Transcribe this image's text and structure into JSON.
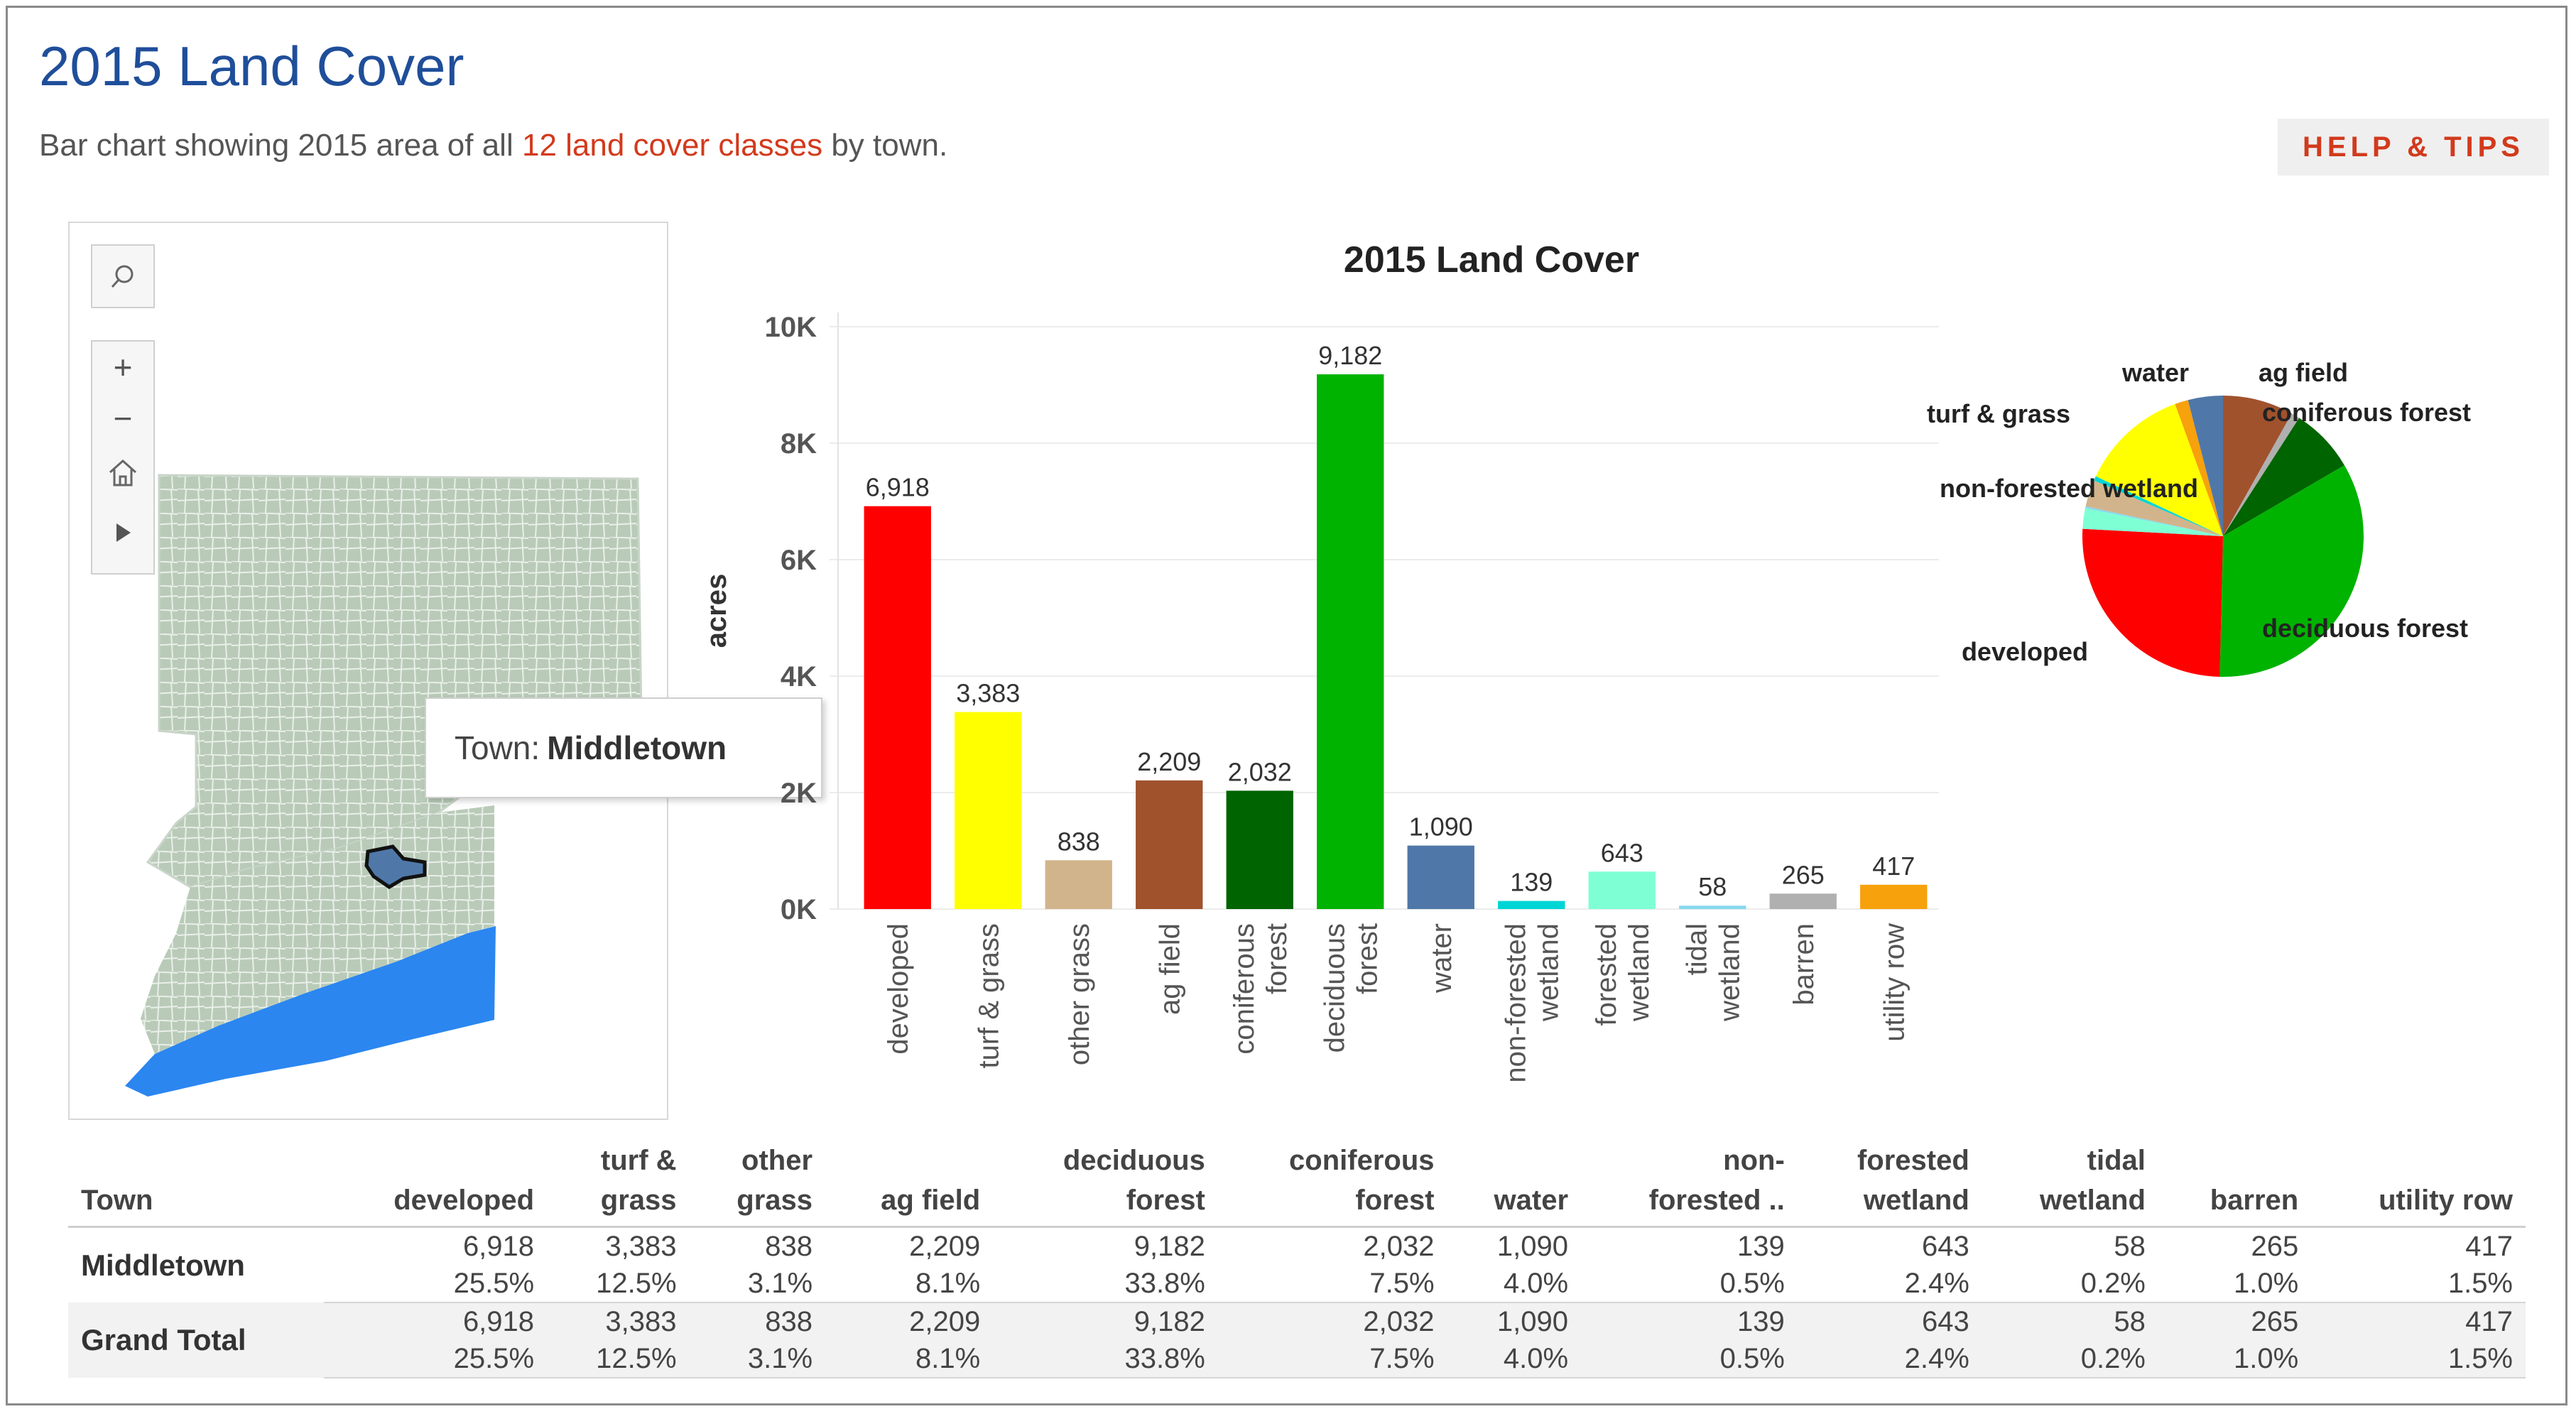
{
  "page": {
    "title": "2015 Land Cover",
    "subtitle_prefix": "Bar chart showing 2015 area of all ",
    "subtitle_link": "12 land cover classes",
    "subtitle_suffix": " by town.",
    "help_label": "HELP & TIPS"
  },
  "map": {
    "tooltip_label": "Town:",
    "tooltip_value": "Middletown",
    "controls": [
      "search-icon",
      "zoom-in-icon",
      "zoom-out-icon",
      "home-icon",
      "play-icon"
    ]
  },
  "colors": {
    "title": "#1f4e9a",
    "accent": "#d23a1c"
  },
  "chart_data": {
    "type": "bar",
    "title": "2015 Land Cover",
    "ylabel": "acres",
    "xlabel": "",
    "ylim": [
      0,
      10000
    ],
    "yticks": [
      "0K",
      "2K",
      "4K",
      "6K",
      "8K",
      "10K"
    ],
    "categories": [
      "developed",
      "turf & grass",
      "other grass",
      "ag field",
      "coniferous forest",
      "deciduous forest",
      "water",
      "non-forested wetland",
      "forested wetland",
      "tidal wetland",
      "barren",
      "utility row"
    ],
    "values": [
      6918,
      3383,
      838,
      2209,
      2032,
      9182,
      1090,
      139,
      643,
      58,
      265,
      417
    ],
    "value_labels": [
      "6,918",
      "3,383",
      "838",
      "2,209",
      "2,032",
      "9,182",
      "1,090",
      "139",
      "643",
      "58",
      "265",
      "417"
    ],
    "colors": [
      "#ff0000",
      "#ffff00",
      "#d2b48c",
      "#a0522d",
      "#006400",
      "#00b300",
      "#4f78a8",
      "#00d5d5",
      "#7fffd4",
      "#87d8ee",
      "#b0b0b0",
      "#f7a10c"
    ],
    "grid": true,
    "pie": {
      "type": "pie",
      "labels": [
        "water",
        "ag field",
        "coniferous forest",
        "turf & grass",
        "non-forested wetland",
        "deciduous forest",
        "developed"
      ]
    }
  },
  "table": {
    "headers": [
      [
        "",
        "Town"
      ],
      [
        "",
        "developed"
      ],
      [
        "turf &",
        "grass"
      ],
      [
        "other",
        "grass"
      ],
      [
        "",
        "ag field"
      ],
      [
        "deciduous",
        "forest"
      ],
      [
        "coniferous",
        "forest"
      ],
      [
        "",
        "water"
      ],
      [
        "non-",
        "forested .."
      ],
      [
        "forested",
        "wetland"
      ],
      [
        "tidal",
        "wetland"
      ],
      [
        "",
        "barren"
      ],
      [
        "",
        "utility row"
      ]
    ],
    "rows": [
      {
        "town": "Middletown",
        "acres": [
          "6,918",
          "3,383",
          "838",
          "2,209",
          "9,182",
          "2,032",
          "1,090",
          "139",
          "643",
          "58",
          "265",
          "417"
        ],
        "pct": [
          "25.5%",
          "12.5%",
          "3.1%",
          "8.1%",
          "33.8%",
          "7.5%",
          "4.0%",
          "0.5%",
          "2.4%",
          "0.2%",
          "1.0%",
          "1.5%"
        ]
      },
      {
        "town": "Grand Total",
        "acres": [
          "6,918",
          "3,383",
          "838",
          "2,209",
          "9,182",
          "2,032",
          "1,090",
          "139",
          "643",
          "58",
          "265",
          "417"
        ],
        "pct": [
          "25.5%",
          "12.5%",
          "3.1%",
          "8.1%",
          "33.8%",
          "7.5%",
          "4.0%",
          "0.5%",
          "2.4%",
          "0.2%",
          "1.0%",
          "1.5%"
        ]
      }
    ]
  }
}
